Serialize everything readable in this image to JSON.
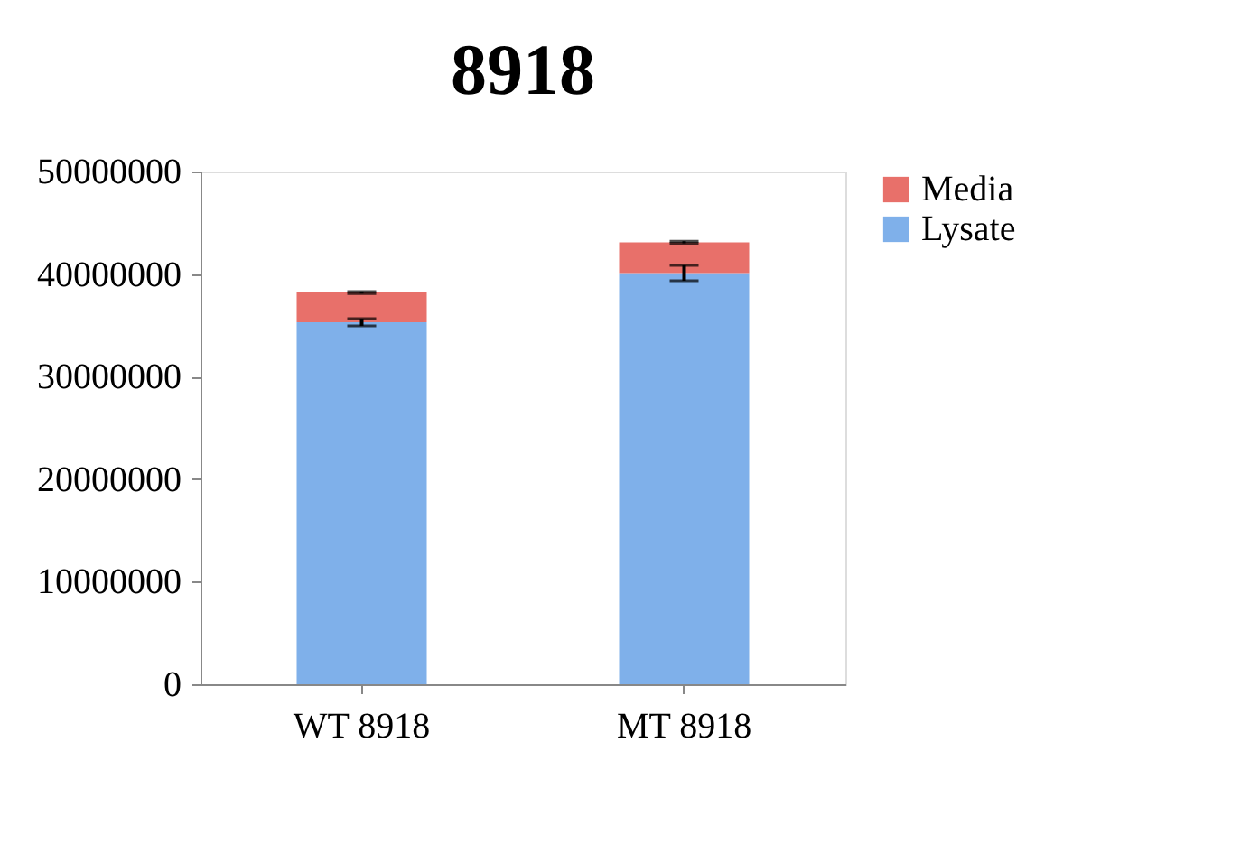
{
  "chart_data": {
    "type": "bar",
    "title": "8918",
    "categories": [
      "WT 8918",
      "MT 8918"
    ],
    "stacked": true,
    "series": [
      {
        "name": "Lysate",
        "color": "#7fb0ea",
        "values": [
          35300000,
          40100000
        ],
        "errors": [
          350000,
          750000
        ]
      },
      {
        "name": "Media",
        "color": "#e8706a",
        "values": [
          2900000,
          3000000
        ],
        "errors": [
          100000,
          100000
        ]
      }
    ],
    "ylim": [
      0,
      50000000
    ],
    "yticks": [
      0,
      10000000,
      20000000,
      30000000,
      40000000,
      50000000
    ],
    "grid": false,
    "legend": "right"
  }
}
